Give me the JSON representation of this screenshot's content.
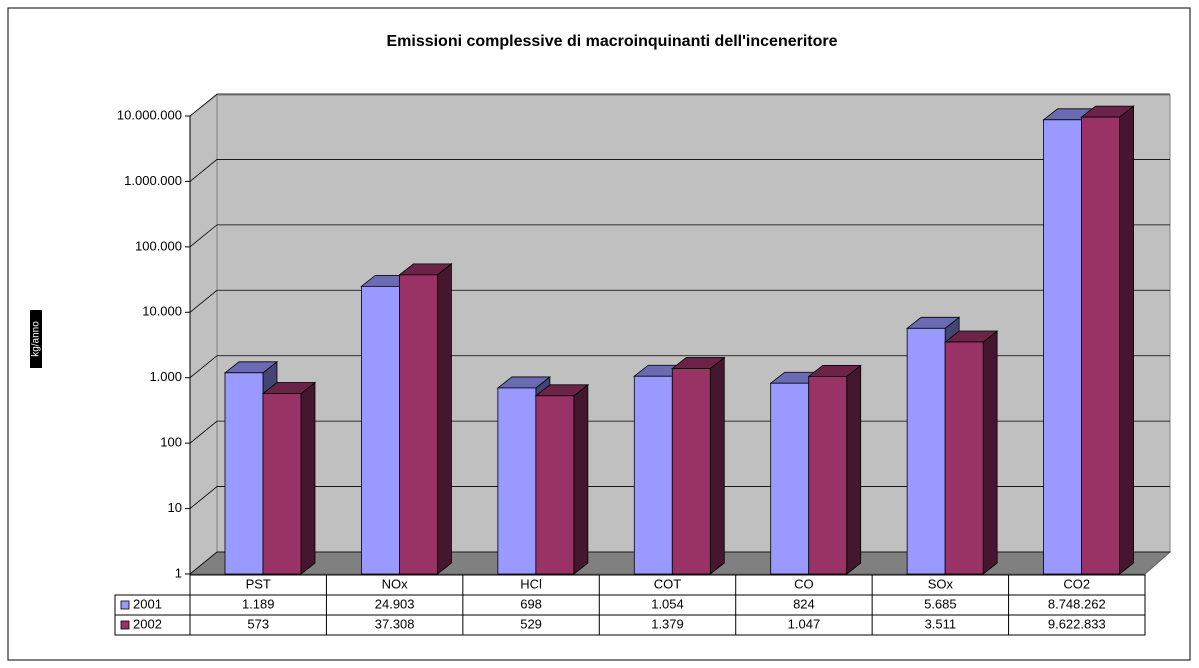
{
  "chart_data": {
    "type": "bar",
    "title": "Emissioni complessive di macroinquinanti dell'inceneritore",
    "y_label": "kg/anno",
    "categories": [
      "PST",
      "NOx",
      "HCl",
      "COT",
      "CO",
      "SOx",
      "CO2"
    ],
    "series": [
      {
        "name": "2001",
        "color": "#9999ff",
        "values": [
          1189,
          24903,
          698,
          1054,
          824,
          5685,
          8748262
        ],
        "value_labels": [
          "1.189",
          "24.903",
          "698",
          "1.054",
          "824",
          "5.685",
          "8.748.262"
        ]
      },
      {
        "name": "2002",
        "color": "#993366",
        "values": [
          573,
          37308,
          529,
          1379,
          1047,
          3511,
          9622833
        ],
        "value_labels": [
          "573",
          "37.308",
          "529",
          "1.379",
          "1.047",
          "3.511",
          "9.622.833"
        ]
      }
    ],
    "log_scale": true,
    "ylim": [
      1,
      10000000
    ],
    "yticks": [
      1,
      10,
      100,
      {
        "value": 1000,
        "label": "1.000"
      },
      {
        "value": 10000,
        "label": "10.000"
      },
      {
        "value": 100000,
        "label": "100.000"
      },
      {
        "value": 1000000,
        "label": "1.000.000"
      },
      {
        "value": 10000000,
        "label": "10.000.000"
      }
    ],
    "grid": true,
    "data_table": true
  }
}
